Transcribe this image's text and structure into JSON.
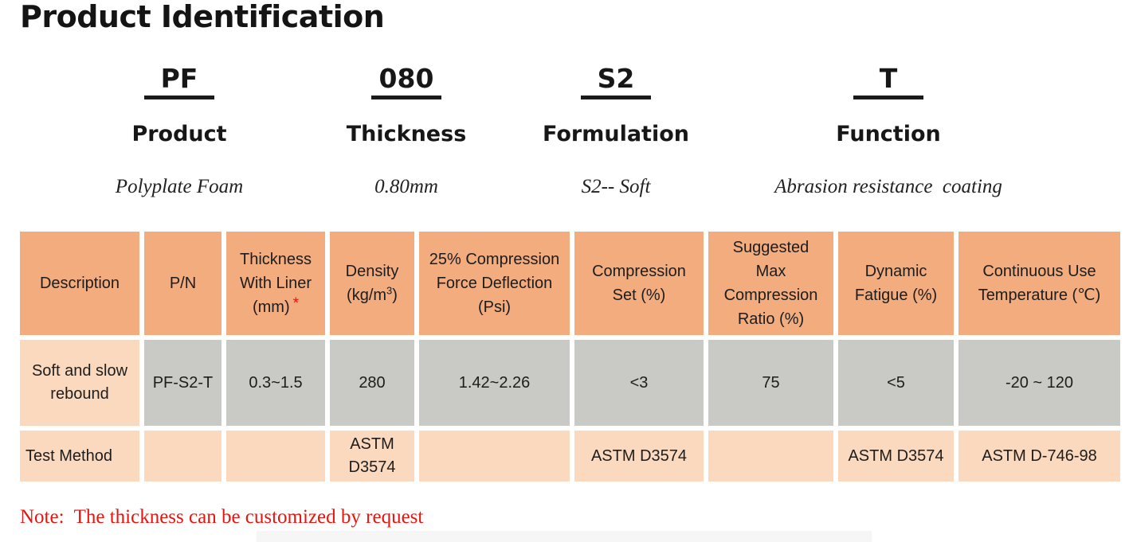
{
  "title": "Product Identification",
  "code_breakdown": {
    "items": [
      {
        "code": "PF",
        "label": "Product",
        "value": "Polyplate Foam"
      },
      {
        "code": "080",
        "label": "Thickness",
        "value": "0.80mm"
      },
      {
        "code": "S2",
        "label": "Formulation",
        "value": "S2-- Soft"
      },
      {
        "code": "T",
        "label": "Function",
        "value": "Abrasion resistance  coating"
      }
    ]
  },
  "table": {
    "headers": {
      "description": "Description",
      "pn": "P/N",
      "thickness_liner_text": "Thickness With Liner (mm)",
      "thickness_liner_mark": "*",
      "density_pre": "Density (kg/m",
      "density_sup": "3",
      "density_post": ")",
      "cfd": "25% Compression Force Deflection (Psi)",
      "compression_set": "Compression Set (%)",
      "suggested_max": "Suggested Max Compression Ratio (%)",
      "dynamic_fatigue": "Dynamic Fatigue (%)",
      "continuous_use": "Continuous Use Temperature (℃)"
    },
    "rows": [
      {
        "name": "Soft and slow rebound",
        "cells": [
          "Soft and slow rebound",
          "PF-S2-T",
          "0.3~1.5",
          "280",
          "1.42~2.26",
          "<3",
          "75",
          "<5",
          "-20 ~ 120"
        ]
      },
      {
        "name": "Test Method",
        "cells": [
          "Test Method",
          "",
          "",
          "ASTM D3574",
          "",
          "ASTM D3574",
          "",
          "ASTM D3574",
          "ASTM D-746-98"
        ]
      }
    ]
  },
  "note": "Note:  The thickness can be customized by request",
  "colors": {
    "header_bg": "#F2AC7E",
    "peach_bg": "#FBD9BE",
    "gray_bg": "#C9C9C5",
    "accent_red": "#E8150F",
    "text": "#1C1C1C"
  }
}
